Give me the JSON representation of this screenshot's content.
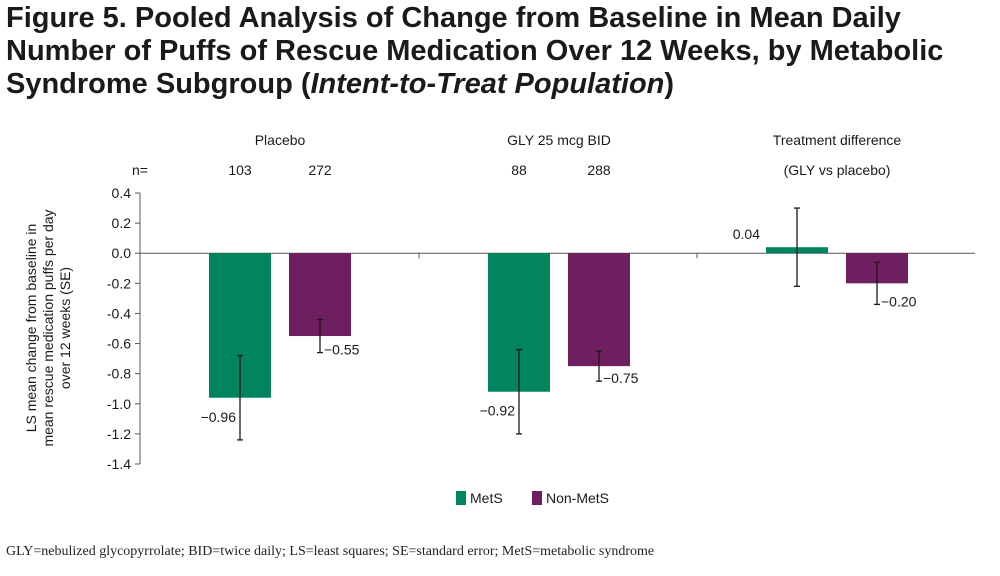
{
  "title": {
    "main": "Figure 5. Pooled Analysis of Change from Baseline in Mean Daily Number of Puffs of Rescue Medication Over 12 Weeks, by Metabolic Syndrome Subgroup (",
    "italic": "Intent-to-Treat Population",
    "close": ")"
  },
  "chart_data": {
    "type": "bar",
    "ylabel_lines": [
      "LS mean change from baseline in",
      "mean rescue medication puffs per day",
      "over 12 weeks (SE)"
    ],
    "ylim": [
      -1.4,
      0.4
    ],
    "yticks": [
      "0.4",
      "0.2",
      "0.0",
      "-0.2",
      "-0.4",
      "-0.6",
      "-0.8",
      "-1.0",
      "-1.2",
      "-1.4"
    ],
    "n_label": "n=",
    "groups": [
      {
        "label": "Placebo",
        "sublabel": "",
        "n": [
          "103",
          "272"
        ],
        "values": [
          -0.96,
          -0.55
        ],
        "errors": [
          0.28,
          0.11
        ],
        "value_labels": [
          "−0.96",
          "−0.55"
        ]
      },
      {
        "label": "GLY 25 mcg BID",
        "sublabel": "",
        "n": [
          "88",
          "288"
        ],
        "values": [
          -0.92,
          -0.75
        ],
        "errors": [
          0.28,
          0.1
        ],
        "value_labels": [
          "−0.92",
          "−0.75"
        ]
      },
      {
        "label": "Treatment difference",
        "sublabel": "(GLY vs placebo)",
        "n": [
          "",
          ""
        ],
        "values": [
          0.04,
          -0.2
        ],
        "errors": [
          0.26,
          0.14
        ],
        "value_labels": [
          "0.04",
          "−0.20"
        ]
      }
    ],
    "series": [
      {
        "name": "MetS",
        "color": "#00855f"
      },
      {
        "name": "Non-MetS",
        "color": "#6e1f5f"
      }
    ],
    "legend_position": "bottom-center",
    "grid": false
  },
  "footnote": "GLY=nebulized glycopyrrolate; BID=twice daily; LS=least squares; SE=standard error; MetS=metabolic syndrome"
}
